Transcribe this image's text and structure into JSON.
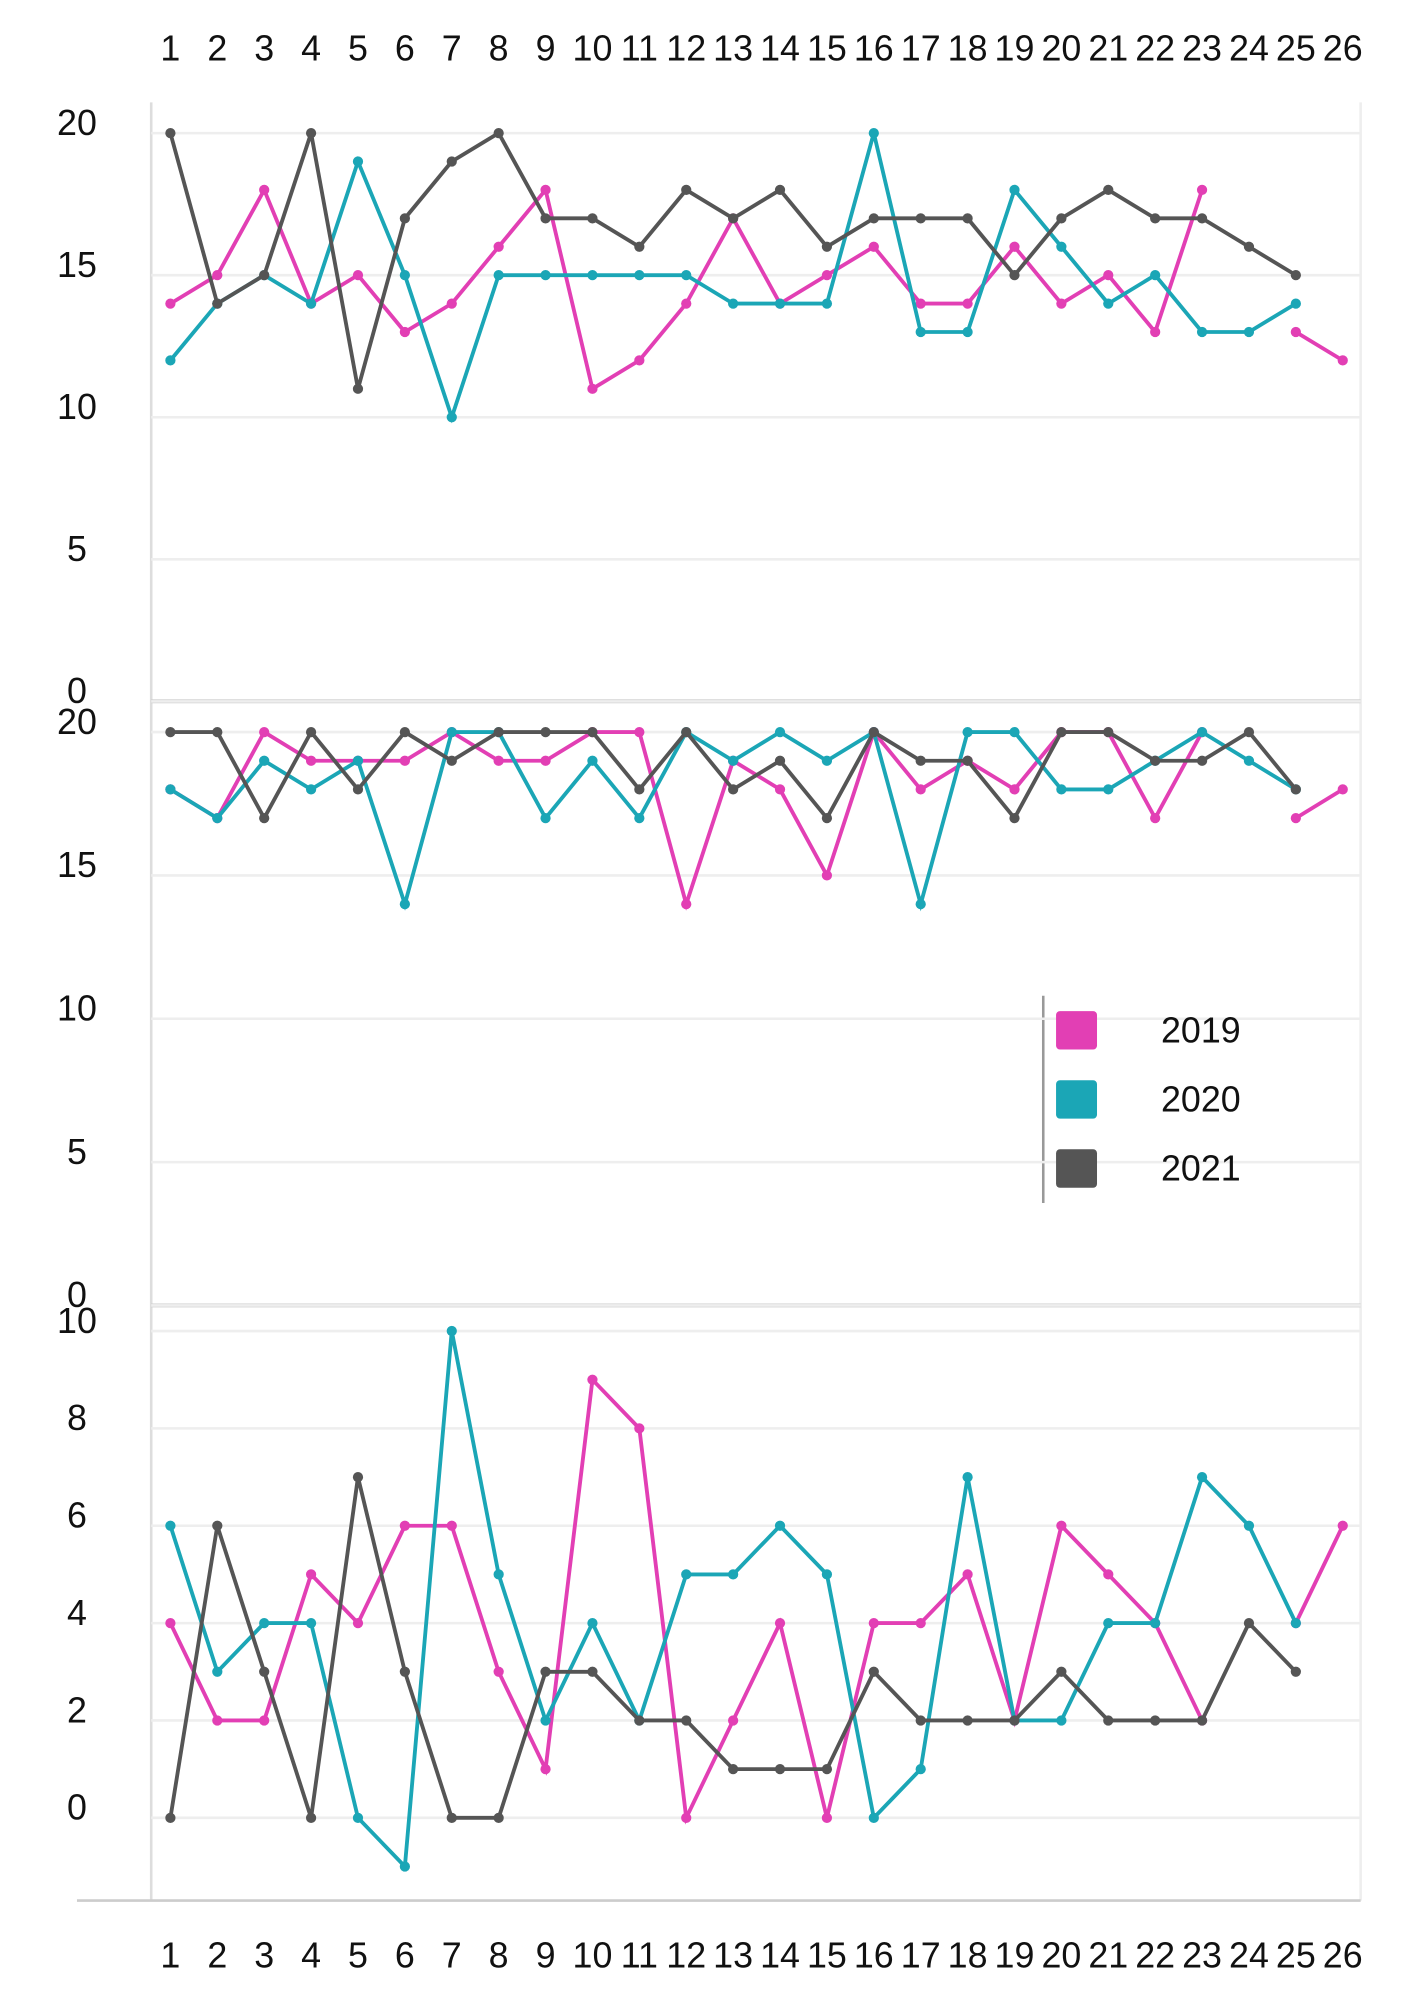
{
  "chart_data": [
    {
      "type": "line",
      "x": [
        1,
        2,
        3,
        4,
        5,
        6,
        7,
        8,
        9,
        10,
        11,
        12,
        13,
        14,
        15,
        16,
        17,
        18,
        19,
        20,
        21,
        22,
        23,
        24,
        25,
        26
      ],
      "xlim": [
        1,
        26
      ],
      "xticks": [
        1,
        2,
        3,
        4,
        5,
        6,
        7,
        8,
        9,
        10,
        11,
        12,
        13,
        14,
        15,
        16,
        17,
        18,
        19,
        20,
        21,
        22,
        23,
        24,
        25,
        26
      ],
      "ylim": [
        0,
        20
      ],
      "yticks": [
        0,
        5,
        10,
        15,
        20
      ],
      "grid": true,
      "series": [
        {
          "name": "2019",
          "color": "#e23fb4",
          "values": [
            14,
            15,
            18,
            14,
            15,
            13,
            14,
            16,
            18,
            11,
            12,
            14,
            17,
            14,
            15,
            16,
            14,
            14,
            16,
            14,
            15,
            13,
            18,
            null,
            13,
            12
          ]
        },
        {
          "name": "2020",
          "color": "#1ba6b6",
          "values": [
            12,
            14,
            15,
            14,
            19,
            15,
            10,
            15,
            15,
            15,
            15,
            15,
            14,
            14,
            14,
            20,
            13,
            13,
            18,
            16,
            14,
            15,
            13,
            13,
            14,
            null
          ]
        },
        {
          "name": "2021",
          "color": "#555555",
          "values": [
            20,
            14,
            15,
            20,
            11,
            17,
            19,
            20,
            17,
            17,
            16,
            18,
            17,
            18,
            16,
            17,
            17,
            17,
            15,
            17,
            18,
            17,
            17,
            16,
            15,
            null
          ]
        }
      ]
    },
    {
      "type": "line",
      "x": [
        1,
        2,
        3,
        4,
        5,
        6,
        7,
        8,
        9,
        10,
        11,
        12,
        13,
        14,
        15,
        16,
        17,
        18,
        19,
        20,
        21,
        22,
        23,
        24,
        25,
        26
      ],
      "xlim": [
        1,
        26
      ],
      "ylim": [
        0,
        20
      ],
      "yticks": [
        0,
        5,
        10,
        15,
        20
      ],
      "grid": true,
      "legend": "center-right",
      "series": [
        {
          "name": "2019",
          "color": "#e23fb4",
          "values": [
            18,
            17,
            20,
            19,
            19,
            19,
            20,
            19,
            19,
            20,
            20,
            14,
            19,
            18,
            15,
            20,
            18,
            19,
            18,
            20,
            20,
            17,
            20,
            null,
            17,
            18
          ]
        },
        {
          "name": "2020",
          "color": "#1ba6b6",
          "values": [
            18,
            17,
            19,
            18,
            19,
            14,
            20,
            20,
            17,
            19,
            17,
            20,
            19,
            20,
            19,
            20,
            14,
            20,
            20,
            18,
            18,
            19,
            20,
            19,
            18,
            null
          ]
        },
        {
          "name": "2021",
          "color": "#555555",
          "values": [
            20,
            20,
            17,
            20,
            18,
            20,
            19,
            20,
            20,
            20,
            18,
            20,
            18,
            19,
            17,
            20,
            19,
            19,
            17,
            20,
            20,
            19,
            19,
            20,
            18,
            null
          ]
        }
      ]
    },
    {
      "type": "line",
      "x": [
        1,
        2,
        3,
        4,
        5,
        6,
        7,
        8,
        9,
        10,
        11,
        12,
        13,
        14,
        15,
        16,
        17,
        18,
        19,
        20,
        21,
        22,
        23,
        24,
        25,
        26
      ],
      "xlim": [
        1,
        26
      ],
      "xticks": [
        1,
        2,
        3,
        4,
        5,
        6,
        7,
        8,
        9,
        10,
        11,
        12,
        13,
        14,
        15,
        16,
        17,
        18,
        19,
        20,
        21,
        22,
        23,
        24,
        25,
        26
      ],
      "ylim": [
        -1.7,
        10
      ],
      "yticks": [
        0,
        2,
        4,
        6,
        8,
        10
      ],
      "grid": true,
      "series": [
        {
          "name": "2019",
          "color": "#e23fb4",
          "values": [
            4,
            2,
            2,
            5,
            4,
            6,
            6,
            3,
            1,
            9,
            8,
            0,
            2,
            4,
            0,
            4,
            4,
            5,
            2,
            6,
            5,
            4,
            2,
            null,
            4,
            6
          ]
        },
        {
          "name": "2020",
          "color": "#1ba6b6",
          "values": [
            6,
            3,
            4,
            4,
            0,
            -1,
            10,
            5,
            2,
            4,
            2,
            5,
            5,
            6,
            5,
            0,
            1,
            7,
            2,
            2,
            4,
            4,
            7,
            6,
            4,
            null
          ]
        },
        {
          "name": "2021",
          "color": "#555555",
          "values": [
            0,
            6,
            3,
            0,
            7,
            3,
            0,
            0,
            3,
            3,
            2,
            2,
            1,
            1,
            1,
            3,
            2,
            2,
            2,
            3,
            2,
            2,
            2,
            4,
            3,
            null
          ]
        }
      ]
    }
  ]
}
